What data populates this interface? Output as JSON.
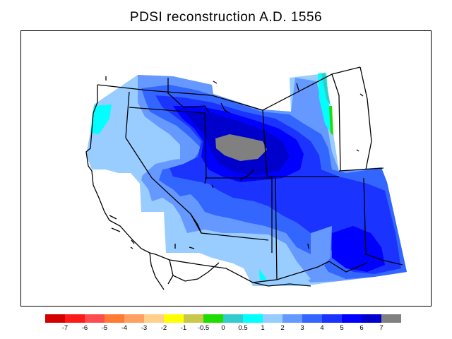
{
  "title": "PDSI reconstruction A.D. 1556",
  "colorbar": {
    "colors": [
      "#d40000",
      "#ff1a1a",
      "#ff4d4d",
      "#ff7a33",
      "#ffa060",
      "#ffd08a",
      "#ffff00",
      "#c8c84a",
      "#20dd00",
      "#33cccc",
      "#00ffff",
      "#99ccff",
      "#6699ff",
      "#3366ff",
      "#1a33ff",
      "#0000ff",
      "#0000cc",
      "#808080"
    ],
    "labels": [
      "-7",
      "-6",
      "-5",
      "-4",
      "-3",
      "-2",
      "-1",
      "-0.5",
      "0",
      "0.5",
      "1",
      "2",
      "3",
      "4",
      "5",
      "6",
      "7"
    ]
  },
  "legend_colors": {
    "missing_gray": "#808080",
    "coast_and_borders": "#000000"
  }
}
